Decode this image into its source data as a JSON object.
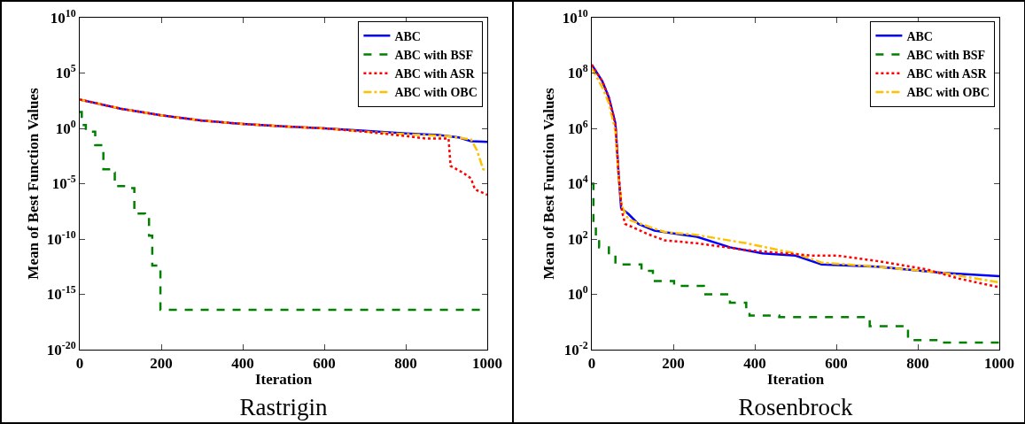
{
  "chart_data": [
    {
      "type": "line",
      "title": "Rastrigin",
      "xlabel": "Iteration",
      "ylabel": "Mean of Best Function Values",
      "log": "y",
      "grid": false,
      "legend": "top right",
      "marker": "none",
      "xlim": [
        0,
        1000
      ],
      "xticks": [
        0,
        200,
        400,
        600,
        800,
        1000
      ],
      "ylim": [
        1e-20,
        10000000000.0
      ],
      "yticks": [
        {
          "value": 1e-20,
          "label": "10$^{-20}$"
        },
        {
          "value": 1e-15,
          "label": "10$^{-15}$"
        },
        {
          "value": 1e-10,
          "label": "10$^{-10}$"
        },
        {
          "value": 1e-05,
          "label": "10$^{-5}$"
        },
        {
          "value": 1,
          "label": "10$^{0}$"
        },
        {
          "value": 100000.0,
          "label": "10$^{5}$"
        },
        {
          "value": 10000000000.0,
          "label": "10$^{10}$"
        }
      ],
      "series": [
        {
          "name": "ABC",
          "color": "#0000ff",
          "line_style": "solid",
          "x": [
            0,
            100,
            200,
            300,
            400,
            500,
            600,
            700,
            800,
            880,
            930,
            960,
            1000
          ],
          "values": [
            400,
            60,
            15,
            5,
            2.5,
            1.5,
            1,
            0.6,
            0.35,
            0.25,
            0.15,
            0.07,
            0.06
          ]
        },
        {
          "name": "ABC with BSF",
          "color": "#008000",
          "line_style": "dashed",
          "type": "step",
          "x": [
            0,
            5,
            15,
            38,
            58,
            72,
            86,
            125,
            134,
            160,
            170,
            178,
            195,
            198,
            1000
          ],
          "values": [
            30,
            2,
            0.5,
            0.03,
            0.0002,
            0.0001,
            6e-06,
            4e-06,
            2e-08,
            1e-08,
            2e-10,
            4e-13,
            2e-13,
            4e-17,
            4e-17
          ]
        },
        {
          "name": "ABC with ASR",
          "color": "#ff0000",
          "line_style": "dotted",
          "x": [
            0,
            100,
            200,
            300,
            400,
            500,
            600,
            700,
            800,
            850,
            905,
            910,
            940,
            960,
            970,
            1000
          ],
          "values": [
            400,
            60,
            15,
            5,
            2.5,
            1.5,
            1,
            0.5,
            0.2,
            0.12,
            0.12,
            0.0004,
            0.0001,
            3e-05,
            3e-06,
            1e-06
          ]
        },
        {
          "name": "ABC with OBC",
          "color": "#ffc000",
          "line_style": "dashdot",
          "x": [
            0,
            100,
            200,
            300,
            400,
            500,
            600,
            700,
            800,
            900,
            960,
            975,
            990,
            1000
          ],
          "values": [
            400,
            60,
            15,
            5,
            2.5,
            1.5,
            1,
            0.5,
            0.3,
            0.2,
            0.1,
            0.01,
            0.0002,
            0.00015
          ]
        }
      ]
    },
    {
      "type": "line",
      "title": "Rosenbrock",
      "xlabel": "Iteration",
      "ylabel": "Mean of Best Function Values",
      "log": "y",
      "grid": false,
      "legend": "top right",
      "marker": "none",
      "xlim": [
        0,
        1000
      ],
      "xticks": [
        0,
        200,
        400,
        600,
        800,
        1000
      ],
      "ylim": [
        0.01,
        10000000000.0
      ],
      "yticks": [
        {
          "value": 0.01,
          "label": "10$^{-2}$"
        },
        {
          "value": 1,
          "label": "10$^{0}$"
        },
        {
          "value": 100,
          "label": "10$^{2}$"
        },
        {
          "value": 10000.0,
          "label": "10$^{4}$"
        },
        {
          "value": 1000000.0,
          "label": "10$^{6}$"
        },
        {
          "value": 100000000.0,
          "label": "10$^{8}$"
        },
        {
          "value": 10000000000.0,
          "label": "10$^{10}$"
        }
      ],
      "series": [
        {
          "name": "ABC",
          "color": "#0000ff",
          "line_style": "solid",
          "x": [
            0,
            26,
            42,
            58,
            66,
            72,
            90,
            114,
            154,
            258,
            339,
            419,
            500,
            564,
            700,
            861,
            1000
          ],
          "values": [
            200000000.0,
            50000000.0,
            13000000.0,
            1500000.0,
            20000.0,
            1300,
            800,
            350,
            200,
            120,
            50,
            30,
            25,
            12,
            10,
            6,
            4.5
          ]
        },
        {
          "name": "ABC with BSF",
          "color": "#008000",
          "line_style": "dashed",
          "type": "step",
          "x": [
            0,
            4,
            10,
            18,
            42,
            58,
            122,
            150,
            202,
            275,
            339,
            379,
            387,
            460,
            682,
            776,
            852,
            1000
          ],
          "values": [
            10000.0,
            280,
            100,
            50,
            25,
            12,
            7,
            3,
            2,
            1,
            0.5,
            0.25,
            0.17,
            0.15,
            0.07,
            0.022,
            0.018,
            0.017
          ]
        },
        {
          "name": "ABC with ASR",
          "color": "#ff0000",
          "line_style": "dotted",
          "x": [
            0,
            26,
            42,
            58,
            66,
            74,
            82,
            138,
            178,
            258,
            379,
            540,
            604,
            700,
            821,
            901,
            1000
          ],
          "values": [
            200000000.0,
            50000000.0,
            13000000.0,
            1500000.0,
            20000.0,
            1000,
            350,
            150,
            90,
            70,
            40,
            25,
            25,
            16,
            8,
            3.7,
            1.8
          ]
        },
        {
          "name": "ABC with OBC",
          "color": "#ffc000",
          "line_style": "dashdot",
          "x": [
            0,
            26,
            42,
            58,
            66,
            74,
            90,
            178,
            258,
            379,
            500,
            564,
            700,
            861,
            1000
          ],
          "values": [
            150000000.0,
            30000000.0,
            8000000.0,
            800000.0,
            15000.0,
            1500,
            500,
            180,
            140,
            70,
            30,
            14,
            10,
            6,
            2.7
          ]
        }
      ]
    }
  ]
}
